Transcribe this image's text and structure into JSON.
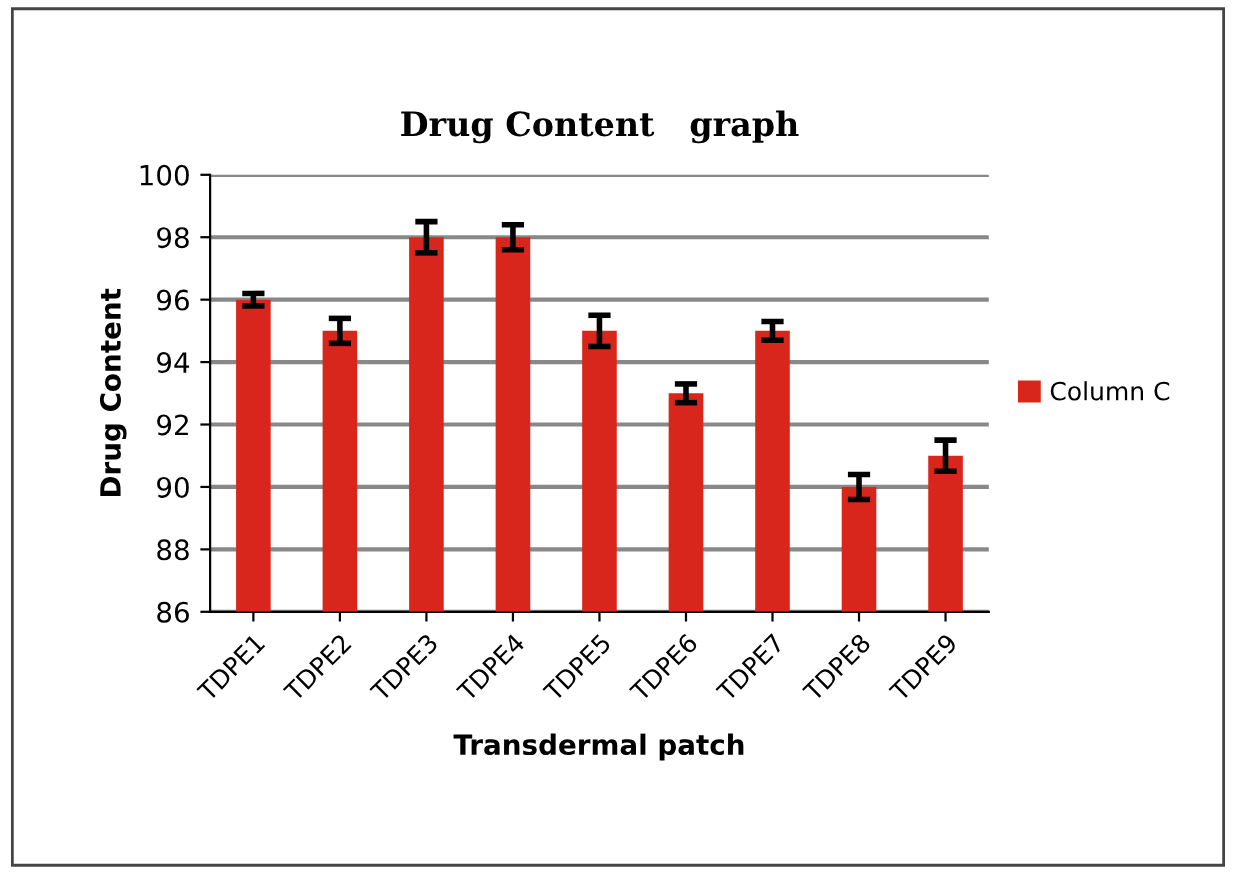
{
  "chart_data": {
    "type": "bar",
    "title": "Drug Content   graph",
    "xlabel": "Transdermal patch",
    "ylabel": "Drug Content",
    "categories": [
      "TDPE1",
      "TDPE2",
      "TDPE3",
      "TDPE4",
      "TDPE5",
      "TDPE6",
      "TDPE7",
      "TDPE8",
      "TDPE9"
    ],
    "series": [
      {
        "name": "Column C",
        "color": "#d9261c",
        "values": [
          96,
          95,
          98,
          98,
          95,
          93,
          95,
          90,
          91
        ],
        "errors": [
          0.2,
          0.4,
          0.5,
          0.4,
          0.5,
          0.3,
          0.3,
          0.4,
          0.5
        ]
      }
    ],
    "ylim": [
      86,
      100
    ],
    "yticks": [
      86,
      88,
      90,
      92,
      94,
      96,
      98,
      100
    ],
    "grid": "y",
    "legend": "right"
  }
}
